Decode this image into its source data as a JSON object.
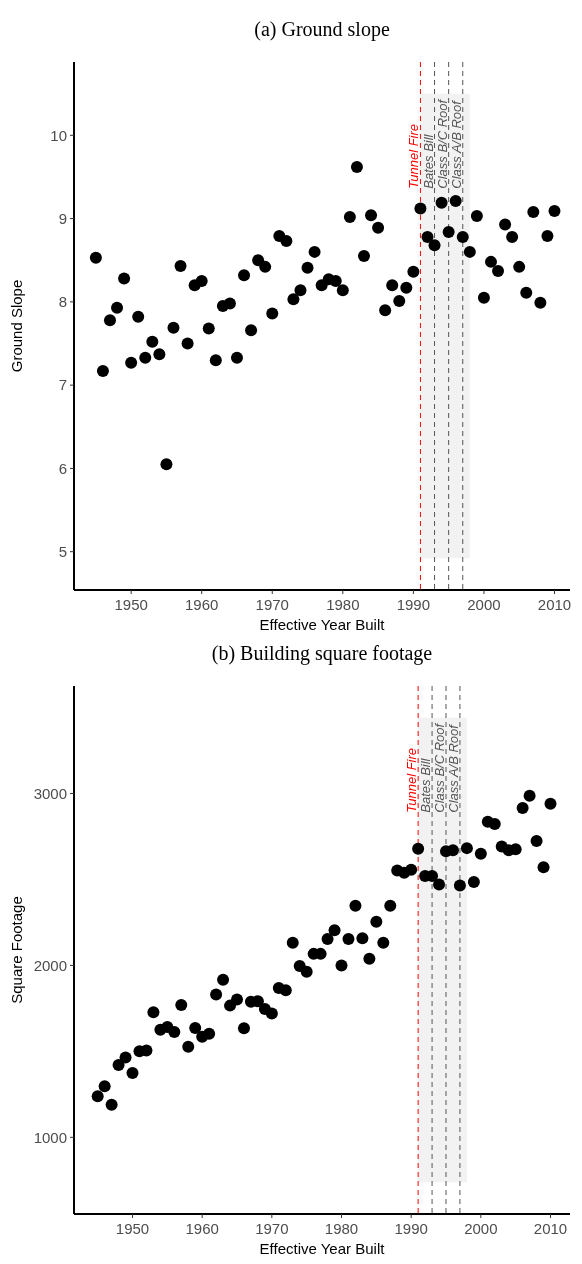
{
  "chart_data": [
    {
      "type": "scatter",
      "title": "(a) Ground slope",
      "xlabel": "Effective Year Built",
      "ylabel": "Ground Slope",
      "marker": "circle",
      "color": "#000000",
      "x": [
        1945,
        1946,
        1947,
        1948,
        1949,
        1950,
        1951,
        1952,
        1953,
        1954,
        1955,
        1956,
        1957,
        1958,
        1959,
        1960,
        1961,
        1962,
        1963,
        1964,
        1965,
        1966,
        1967,
        1968,
        1969,
        1970,
        1971,
        1972,
        1973,
        1974,
        1975,
        1976,
        1977,
        1978,
        1979,
        1980,
        1981,
        1982,
        1983,
        1984,
        1985,
        1986,
        1987,
        1988,
        1989,
        1990,
        1991,
        1992,
        1993,
        1994,
        1995,
        1996,
        1997,
        1998,
        1999,
        2000,
        2001,
        2002,
        2003,
        2004,
        2005,
        2006,
        2007,
        2008,
        2009,
        2010
      ],
      "values": [
        8.53,
        7.17,
        7.78,
        7.93,
        8.28,
        7.27,
        7.82,
        7.33,
        7.52,
        7.37,
        6.05,
        7.69,
        8.43,
        7.5,
        8.2,
        8.25,
        7.68,
        7.3,
        7.95,
        7.98,
        7.33,
        8.32,
        7.66,
        8.5,
        8.42,
        7.86,
        8.79,
        8.73,
        8.03,
        8.14,
        8.41,
        8.6,
        8.2,
        8.27,
        8.25,
        8.14,
        9.02,
        9.62,
        8.55,
        9.04,
        8.89,
        7.9,
        8.2,
        8.01,
        8.17,
        8.36,
        9.12,
        8.78,
        8.68,
        9.19,
        8.84,
        9.21,
        8.78,
        8.6,
        9.03,
        8.05,
        8.48,
        8.37,
        8.93,
        8.78,
        8.42,
        8.11,
        9.08,
        7.99,
        8.79,
        9.09
      ],
      "xlim": [
        1941.9,
        2012.2
      ],
      "xticks": [
        1950,
        1960,
        1970,
        1980,
        1990,
        2000,
        2010
      ],
      "ylim": [
        4.54,
        10.88
      ],
      "yticks": [
        5,
        6,
        7,
        8,
        9,
        10
      ],
      "ref_lines": [
        {
          "axis": "x",
          "value": 1991,
          "label": "Tunnel Fire",
          "color": "#ff0000",
          "line_style": "dashed"
        },
        {
          "axis": "x",
          "value": 1993,
          "label": "Bates Bill",
          "color": "#555555",
          "line_style": "dashed"
        },
        {
          "axis": "x",
          "value": 1995,
          "label": "Class B/C Roof",
          "color": "#555555",
          "line_style": "dashed"
        },
        {
          "axis": "x",
          "value": 1997,
          "label": "Class A/B Roof",
          "color": "#555555",
          "line_style": "dashed"
        }
      ],
      "bands": [
        {
          "axis": "x",
          "from": 1991,
          "to": 1998,
          "color": "#f2f2f2"
        }
      ]
    },
    {
      "type": "scatter",
      "title": "(b) Building square footage",
      "xlabel": "Effective Year Built",
      "ylabel": "Square Footage",
      "marker": "circle",
      "color": "#000000",
      "x": [
        1945,
        1946,
        1947,
        1948,
        1949,
        1950,
        1951,
        1952,
        1953,
        1954,
        1955,
        1956,
        1957,
        1958,
        1959,
        1960,
        1961,
        1962,
        1963,
        1964,
        1965,
        1966,
        1967,
        1968,
        1969,
        1970,
        1971,
        1972,
        1973,
        1974,
        1975,
        1976,
        1977,
        1978,
        1979,
        1980,
        1981,
        1982,
        1983,
        1984,
        1985,
        1986,
        1987,
        1988,
        1989,
        1990,
        1991,
        1992,
        1993,
        1994,
        1995,
        1996,
        1997,
        1998,
        1999,
        2000,
        2001,
        2002,
        2003,
        2004,
        2005,
        2006,
        2007,
        2008,
        2009,
        2010
      ],
      "values": [
        1239,
        1297,
        1189,
        1421,
        1464,
        1374,
        1501,
        1505,
        1727,
        1626,
        1641,
        1613,
        1770,
        1527,
        1636,
        1585,
        1602,
        1830,
        1916,
        1766,
        1802,
        1634,
        1789,
        1791,
        1746,
        1720,
        1869,
        1856,
        2131,
        1996,
        1963,
        2067,
        2067,
        2153,
        2205,
        2000,
        2153,
        2347,
        2158,
        2039,
        2254,
        2132,
        2347,
        2552,
        2539,
        2556,
        2679,
        2520,
        2520,
        2470,
        2664,
        2670,
        2465,
        2682,
        2485,
        2649,
        2836,
        2822,
        2692,
        2670,
        2676,
        2916,
        2987,
        2724,
        2571,
        2940
      ],
      "xlim": [
        1941.6,
        2012.8
      ],
      "xticks": [
        1950,
        1960,
        1970,
        1980,
        1990,
        2000,
        2010
      ],
      "ylim": [
        554,
        3625
      ],
      "yticks": [
        1000,
        2000,
        3000
      ],
      "ref_lines": [
        {
          "axis": "x",
          "value": 1991,
          "label": "Tunnel Fire",
          "color": "#ff0000",
          "line_style": "dashed"
        },
        {
          "axis": "x",
          "value": 1993,
          "label": "Bates Bill",
          "color": "#555555",
          "line_style": "dashed"
        },
        {
          "axis": "x",
          "value": 1995,
          "label": "Class B/C Roof",
          "color": "#555555",
          "line_style": "dashed"
        },
        {
          "axis": "x",
          "value": 1997,
          "label": "Class A/B Roof",
          "color": "#555555",
          "line_style": "dashed"
        }
      ],
      "bands": [
        {
          "axis": "x",
          "from": 1991,
          "to": 1998,
          "color": "#f2f2f2"
        }
      ]
    }
  ]
}
